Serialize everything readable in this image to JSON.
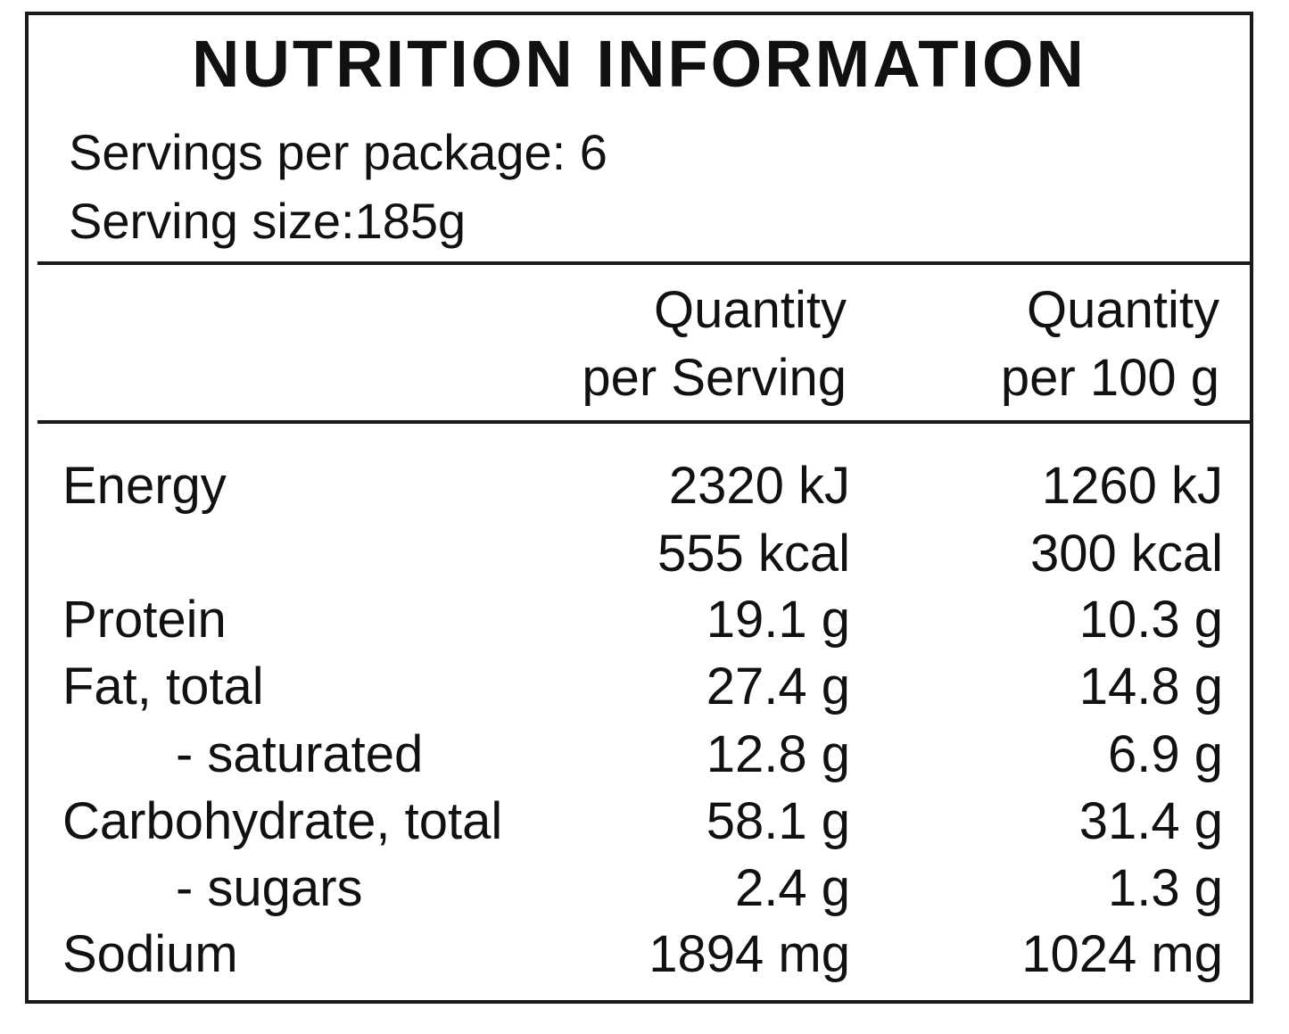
{
  "title": "NUTRITION INFORMATION",
  "servings_per_package": "Servings per package: 6",
  "serving_size": "Serving size:185g",
  "columns": {
    "per_serving": [
      "Quantity",
      "per Serving"
    ],
    "per_100g": [
      "Quantity",
      "per 100 g"
    ]
  },
  "rows": [
    {
      "label": "Energy",
      "per_serving": "2320 kJ",
      "per_100g": "1260 kJ"
    },
    {
      "label": "",
      "per_serving": "555 kcal",
      "per_100g": "300 kcal"
    },
    {
      "label": "Protein",
      "per_serving": "19.1 g",
      "per_100g": "10.3 g"
    },
    {
      "label": "Fat, total",
      "per_serving": "27.4 g",
      "per_100g": "14.8 g"
    },
    {
      "label": "- saturated",
      "per_serving": "12.8 g",
      "per_100g": "6.9 g"
    },
    {
      "label": "Carbohydrate, total",
      "per_serving": "58.1 g",
      "per_100g": "31.4 g"
    },
    {
      "label": "- sugars",
      "per_serving": "2.4 g",
      "per_100g": "1.3 g"
    },
    {
      "label": "Sodium",
      "per_serving": "1894 mg",
      "per_100g": "1024 mg"
    }
  ]
}
